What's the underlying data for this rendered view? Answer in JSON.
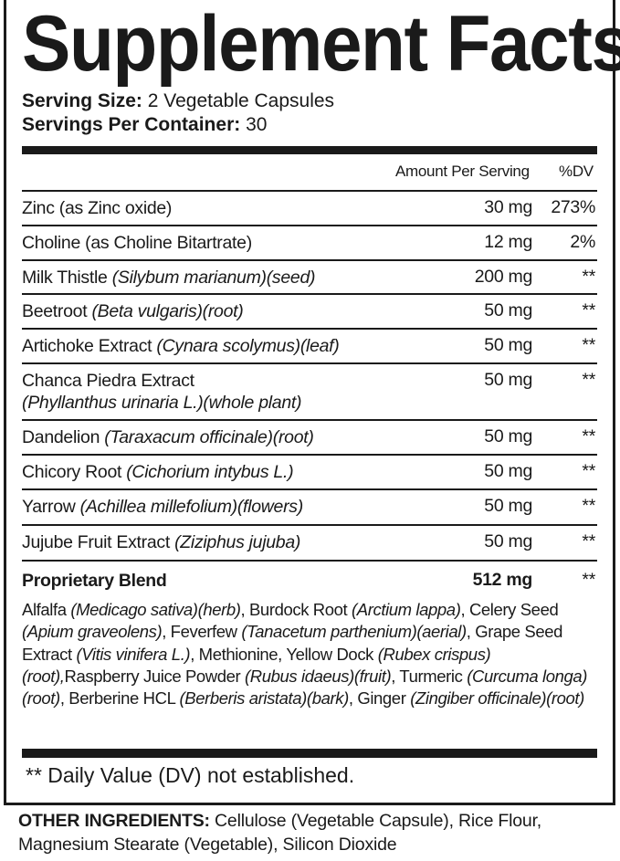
{
  "title": "Supplement Facts",
  "serving_size_label": "Serving Size:",
  "serving_size": "2 Vegetable Capsules",
  "servings_per_container_label": "Servings Per Container:",
  "servings_per_container": "30",
  "header": {
    "amount": "Amount Per Serving",
    "dv": "%DV"
  },
  "rows": [
    {
      "name": "Zinc (as Zinc oxide)",
      "latin": "",
      "amount": "30 mg",
      "dv": "273%"
    },
    {
      "name": "Choline (as Choline Bitartrate)",
      "latin": "",
      "amount": "12 mg",
      "dv": "2%"
    },
    {
      "name": "Milk Thistle",
      "latin": "(Silybum marianum)(seed)",
      "amount": "200 mg",
      "dv": "**"
    },
    {
      "name": "Beetroot",
      "latin": "(Beta vulgaris)(root)",
      "amount": "50 mg",
      "dv": "**"
    },
    {
      "name": "Artichoke Extract",
      "latin": "(Cynara scolymus)(leaf)",
      "amount": "50 mg",
      "dv": "**"
    },
    {
      "name": "Chanca Piedra Extract",
      "latin": "(Phyllanthus urinaria L.)(whole plant)",
      "amount": "50 mg",
      "dv": "**"
    },
    {
      "name": "Dandelion",
      "latin": "(Taraxacum officinale)(root)",
      "amount": "50 mg",
      "dv": "**"
    },
    {
      "name": "Chicory Root",
      "latin": "(Cichorium intybus L.)",
      "amount": "50 mg",
      "dv": "**"
    },
    {
      "name": "Yarrow",
      "latin": "(Achillea millefolium)(flowers)",
      "amount": "50 mg",
      "dv": "**"
    },
    {
      "name": "Jujube Fruit Extract",
      "latin": "(Ziziphus jujuba)",
      "amount": "50 mg",
      "dv": "**"
    }
  ],
  "blend": {
    "name": "Proprietary Blend",
    "amount": "512 mg",
    "dv": "**",
    "parts": [
      [
        "Alfalfa ",
        "(Medicago sativa)(herb)"
      ],
      [
        ", Burdock Root ",
        "(Arctium lappa)"
      ],
      [
        ", Celery Seed ",
        "(Apium graveolens)"
      ],
      [
        ", Feverfew ",
        "(Tanacetum parthenium)(aerial)"
      ],
      [
        ", Grape Seed Extract ",
        "(Vitis vinifera L.)"
      ],
      [
        ", Methionine, Yellow Dock ",
        "(Rubex crispus)(root),"
      ],
      [
        "Raspberry Juice Powder ",
        "(Rubus idaeus)(fruit)"
      ],
      [
        ", Turmeric ",
        "(Curcuma longa)(root)"
      ],
      [
        ", Berberine HCL ",
        "(Berberis aristata)(bark)"
      ],
      [
        ", Ginger ",
        "(Zingiber officinale)(root)"
      ]
    ]
  },
  "footnote": "** Daily Value (DV) not established.",
  "other_ingredients_label": "OTHER INGREDIENTS:",
  "other_ingredients": "Cellulose (Vegetable Capsule), Rice Flour, Magnesium Stearate (Vegetable), Silicon Dioxide"
}
